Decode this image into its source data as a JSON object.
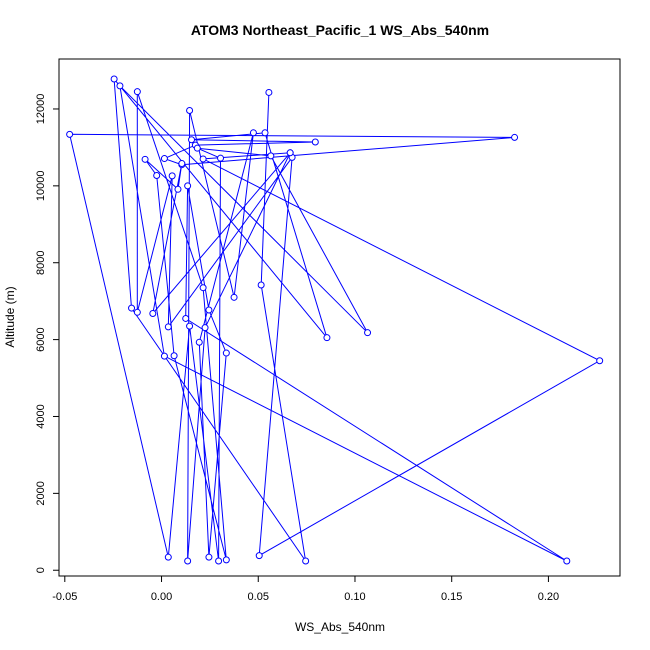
{
  "chart_data": {
    "type": "scatter",
    "title": "ATOM3 Northeast_Pacific_1 WS_Abs_540nm",
    "xlabel": "WS_Abs_540nm",
    "ylabel": "Altitude (m)",
    "xlim": [
      -0.053,
      0.237
    ],
    "ylim": [
      -150,
      13300
    ],
    "x_ticks": [
      -0.05,
      0.0,
      0.05,
      0.1,
      0.15,
      0.2
    ],
    "x_tick_labels": [
      "-0.05",
      "0.00",
      "0.05",
      "0.10",
      "0.15",
      "0.20"
    ],
    "y_ticks": [
      0,
      2000,
      4000,
      6000,
      8000,
      10000,
      12000
    ],
    "y_tick_labels": [
      "0",
      "2000",
      "4000",
      "6000",
      "8000",
      "10000",
      "12000"
    ],
    "grid": false,
    "series": [
      {
        "color": "#0000ff",
        "points": [
          [
            0.0555,
            12430
          ],
          [
            0.0515,
            7420
          ],
          [
            0.0745,
            240
          ],
          [
            -0.0155,
            6820
          ],
          [
            -0.0245,
            12780
          ],
          [
            0.0855,
            6050
          ],
          [
            0.0535,
            11380
          ],
          [
            0.0155,
            11200
          ],
          [
            0.0795,
            11140
          ],
          [
            0.0175,
            11060
          ],
          [
            0.0015,
            10710
          ],
          [
            0.0105,
            10550
          ],
          [
            0.1825,
            11260
          ],
          [
            -0.0475,
            11340
          ],
          [
            0.0035,
            340
          ],
          [
            0.0145,
            6350
          ],
          [
            0.0295,
            240
          ],
          [
            0.0305,
            10720
          ],
          [
            0.0185,
            10980
          ],
          [
            0.0565,
            10780
          ],
          [
            0.1065,
            6180
          ],
          [
            -0.0215,
            12600
          ],
          [
            0.0015,
            5570
          ],
          [
            0.2095,
            240
          ],
          [
            0.0125,
            6550
          ],
          [
            0.0135,
            10000
          ],
          [
            0.0245,
            6770
          ],
          [
            0.0335,
            5650
          ],
          [
            0.0245,
            340
          ],
          [
            0.0195,
            5930
          ],
          [
            0.0475,
            11380
          ],
          [
            0.0375,
            7100
          ],
          [
            0.0145,
            11960
          ],
          [
            0.0135,
            240
          ],
          [
            0.0225,
            6310
          ],
          [
            0.0665,
            10860
          ],
          [
            0.0215,
            10700
          ],
          [
            0.2265,
            5450
          ],
          [
            0.0505,
            380
          ],
          [
            0.0675,
            10740
          ],
          [
            0.0035,
            6330
          ],
          [
            0.0055,
            10260
          ],
          [
            -0.0125,
            6710
          ],
          [
            -0.0125,
            12450
          ],
          [
            0.0215,
            7350
          ],
          [
            0.0335,
            270
          ],
          [
            0.0065,
            5580
          ],
          [
            -0.0025,
            10270
          ],
          [
            -0.0085,
            10690
          ],
          [
            0.0085,
            9910
          ],
          [
            0.0105,
            10580
          ],
          [
            -0.0045,
            6680
          ],
          [
            0.0665,
            10860
          ]
        ]
      }
    ]
  }
}
